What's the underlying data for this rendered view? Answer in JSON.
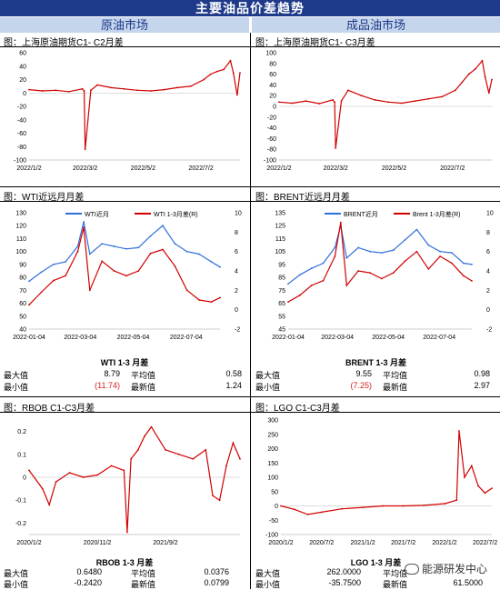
{
  "header": {
    "title": "主要油品价差趋势",
    "left_column": "原油市场",
    "right_column": "成品油市场"
  },
  "panels": {
    "p1": {
      "title": "图：上海原油期货C1- C2月差"
    },
    "p2": {
      "title": "图：上海原油期货C1- C3月差"
    },
    "p3": {
      "title": "图：WTI近远月月差"
    },
    "p4": {
      "title": "图：BRENT近远月月差"
    },
    "p5": {
      "title": "图：RBOB C1-C3月差"
    },
    "p6": {
      "title": "图：LGO C1-C3月差"
    }
  },
  "stats": {
    "wti": {
      "title": "WTI 1-3 月差",
      "max_label": "最大值",
      "max": "8.79",
      "avg_label": "平均值",
      "avg": "0.58",
      "min_label": "最小值",
      "min": "(11.74)",
      "last_label": "最新值",
      "last": "1.24"
    },
    "brent": {
      "title": "BRENT 1-3 月差",
      "max_label": "最大值",
      "max": "9.55",
      "avg_label": "平均值",
      "avg": "0.98",
      "min_label": "最小值",
      "min": "(7.25)",
      "last_label": "最新值",
      "last": "2.97"
    },
    "rbob": {
      "title": "RBOB 1-3 月差",
      "max_label": "最大值",
      "max": "0.6480",
      "avg_label": "平均值",
      "avg": "0.0376",
      "min_label": "最小值",
      "min": "-0.2420",
      "last_label": "最新值",
      "last": "0.0799"
    },
    "lgo": {
      "title": "LGO 1-3 月差",
      "max_label": "最大值",
      "max": "262.0000",
      "avg_label": "平均值",
      "avg": "",
      "min_label": "最小值",
      "min": "-35.7500",
      "last_label": "最新值",
      "last": "61.5000"
    }
  },
  "watermark": "能源研发中心",
  "colors": {
    "banner": "#1f3a8a",
    "column_header": "#c5d6ec",
    "red_series": "#d00000",
    "blue_series": "#2f6fdb"
  },
  "chart_data": [
    {
      "id": "sc_c1c2",
      "type": "line",
      "x": [
        "2022/1/2",
        "2022/1/16",
        "2022/1/30",
        "2022/2/13",
        "2022/2/27",
        "2022/3/1",
        "2022/3/2",
        "2022/3/8",
        "2022/3/15",
        "2022/3/29",
        "2022/4/12",
        "2022/4/26",
        "2022/5/10",
        "2022/5/24",
        "2022/6/7",
        "2022/6/21",
        "2022/7/5",
        "2022/7/12",
        "2022/7/19",
        "2022/7/26",
        "2022/8/2",
        "2022/8/5",
        "2022/8/9",
        "2022/8/12"
      ],
      "series": [
        {
          "values": [
            5,
            3,
            4,
            2,
            6,
            3,
            -84,
            4,
            12,
            8,
            6,
            4,
            3,
            5,
            8,
            10,
            20,
            28,
            32,
            35,
            48,
            30,
            -3,
            30
          ]
        }
      ],
      "xticks": [
        "2022/1/2",
        "2022/3/2",
        "2022/5/2",
        "2022/7/2"
      ],
      "ylim": [
        -100,
        60
      ],
      "yticks": [
        60,
        40,
        20,
        0,
        -20,
        -40,
        -60,
        -80,
        -100
      ]
    },
    {
      "id": "sc_c1c3",
      "type": "line",
      "x": [
        "2022/1/2",
        "2022/1/16",
        "2022/1/30",
        "2022/2/13",
        "2022/2/27",
        "2022/3/1",
        "2022/3/2",
        "2022/3/8",
        "2022/3/15",
        "2022/3/29",
        "2022/4/12",
        "2022/4/26",
        "2022/5/10",
        "2022/5/24",
        "2022/6/7",
        "2022/6/21",
        "2022/7/5",
        "2022/7/12",
        "2022/7/19",
        "2022/7/26",
        "2022/8/2",
        "2022/8/5",
        "2022/8/9",
        "2022/8/12"
      ],
      "series": [
        {
          "values": [
            8,
            6,
            10,
            5,
            12,
            8,
            -78,
            10,
            30,
            20,
            12,
            8,
            6,
            10,
            14,
            18,
            30,
            45,
            60,
            70,
            85,
            55,
            25,
            50
          ]
        }
      ],
      "xticks": [
        "2022/1/2",
        "2022/3/2",
        "2022/5/2",
        "2022/7/2"
      ],
      "ylim": [
        -100,
        100
      ],
      "yticks": [
        100,
        80,
        60,
        40,
        20,
        0,
        -20,
        -40,
        -60,
        -80,
        -100
      ]
    },
    {
      "id": "wti",
      "type": "line",
      "x": [
        "2022-01-04",
        "2022-01-18",
        "2022-02-01",
        "2022-02-15",
        "2022-03-01",
        "2022-03-08",
        "2022-03-15",
        "2022-03-29",
        "2022-04-12",
        "2022-04-26",
        "2022-05-10",
        "2022-05-24",
        "2022-06-07",
        "2022-06-21",
        "2022-07-05",
        "2022-07-19",
        "2022-08-02",
        "2022-08-12"
      ],
      "series": [
        {
          "name": "WTI近月",
          "axis": "left",
          "values": [
            77,
            84,
            90,
            92,
            104,
            123,
            98,
            106,
            104,
            102,
            103,
            112,
            120,
            106,
            100,
            98,
            92,
            88
          ]
        },
        {
          "name": "WTI 1-3月差(R)",
          "axis": "right",
          "values": [
            0.5,
            1.8,
            3.0,
            3.5,
            6.0,
            8.5,
            2.0,
            5.0,
            4.0,
            3.5,
            4.0,
            5.8,
            6.2,
            4.5,
            2.0,
            1.0,
            0.8,
            1.24
          ]
        }
      ],
      "xticks": [
        "2022-01-04",
        "2022-03-04",
        "2022-05-04",
        "2022-07-04"
      ],
      "ylim": [
        40,
        130
      ],
      "yticks": [
        130,
        120,
        110,
        100,
        90,
        80,
        70,
        60,
        50,
        40
      ],
      "y2lim": [
        -2,
        10
      ],
      "y2ticks": [
        10,
        8,
        6,
        4,
        2,
        0,
        -2
      ]
    },
    {
      "id": "brent",
      "type": "line",
      "x": [
        "2022-01-04",
        "2022-01-18",
        "2022-02-01",
        "2022-02-15",
        "2022-03-01",
        "2022-03-08",
        "2022-03-15",
        "2022-03-29",
        "2022-04-12",
        "2022-04-26",
        "2022-05-10",
        "2022-05-24",
        "2022-06-07",
        "2022-06-21",
        "2022-07-05",
        "2022-07-19",
        "2022-08-02",
        "2022-08-12"
      ],
      "series": [
        {
          "name": "BRENT近月",
          "axis": "left",
          "values": [
            80,
            87,
            92,
            96,
            108,
            125,
            100,
            108,
            105,
            104,
            106,
            114,
            122,
            110,
            105,
            104,
            96,
            95
          ]
        },
        {
          "name": "Brent 1-3月差(R)",
          "axis": "right",
          "values": [
            0.8,
            1.5,
            2.5,
            3.0,
            5.5,
            9.0,
            2.5,
            4.0,
            3.8,
            3.2,
            3.8,
            5.0,
            6.0,
            4.2,
            5.5,
            4.8,
            3.5,
            2.97
          ]
        }
      ],
      "xticks": [
        "2022-01-04",
        "2022-03-04",
        "2022-05-04",
        "2022-07-04"
      ],
      "ylim": [
        45,
        135
      ],
      "yticks": [
        135,
        125,
        115,
        105,
        95,
        85,
        75,
        65,
        55,
        45
      ],
      "y2lim": [
        -2,
        10
      ],
      "y2ticks": [
        10,
        8,
        6,
        4,
        2,
        0,
        -2
      ]
    },
    {
      "id": "rbob",
      "type": "line",
      "x": [
        "2020/1/2",
        "2020/3/2",
        "2020/4/1",
        "2020/5/1",
        "2020/7/1",
        "2020/9/1",
        "2020/11/2",
        "2021/1/4",
        "2021/3/1",
        "2021/3/15",
        "2021/4/1",
        "2021/5/3",
        "2021/6/1",
        "2021/7/1",
        "2021/9/2",
        "2021/11/1",
        "2022/1/3",
        "2022/3/1",
        "2022/4/1",
        "2022/5/2",
        "2022/6/1",
        "2022/7/1",
        "2022/8/1"
      ],
      "series": [
        {
          "values": [
            0.03,
            -0.05,
            -0.12,
            -0.02,
            0.02,
            0.0,
            0.01,
            0.05,
            0.03,
            -0.24,
            0.08,
            0.12,
            0.18,
            0.22,
            0.12,
            0.1,
            0.08,
            0.12,
            -0.08,
            -0.1,
            0.05,
            0.15,
            0.08
          ]
        }
      ],
      "xticks": [
        "2020/1/2",
        "2020/11/2",
        "2021/9/2"
      ],
      "ylim": [
        -0.25,
        0.25
      ],
      "yticks": [
        "0.2",
        "0.1",
        "0",
        "-0.1",
        "-0.2"
      ]
    },
    {
      "id": "lgo",
      "type": "line",
      "x": [
        "2020/1/2",
        "2020/3/2",
        "2020/5/1",
        "2020/7/2",
        "2020/10/1",
        "2021/1/4",
        "2021/4/1",
        "2021/7/2",
        "2021/10/1",
        "2022/1/4",
        "2022/2/25",
        "2022/3/8",
        "2022/4/1",
        "2022/5/3",
        "2022/6/1",
        "2022/7/1",
        "2022/8/1"
      ],
      "series": [
        {
          "values": [
            0,
            -12,
            -30,
            -22,
            -10,
            -5,
            0,
            0,
            2,
            8,
            20,
            262,
            100,
            140,
            70,
            45,
            61.5
          ]
        }
      ],
      "xticks": [
        "2020/1/2",
        "2020/7/2",
        "2021/1/2",
        "2021/7/2",
        "2022/1/2",
        "2022/7/2"
      ],
      "ylim": [
        -100,
        300
      ],
      "yticks": [
        300,
        250,
        200,
        150,
        100,
        50,
        0,
        -50,
        -100
      ]
    }
  ]
}
